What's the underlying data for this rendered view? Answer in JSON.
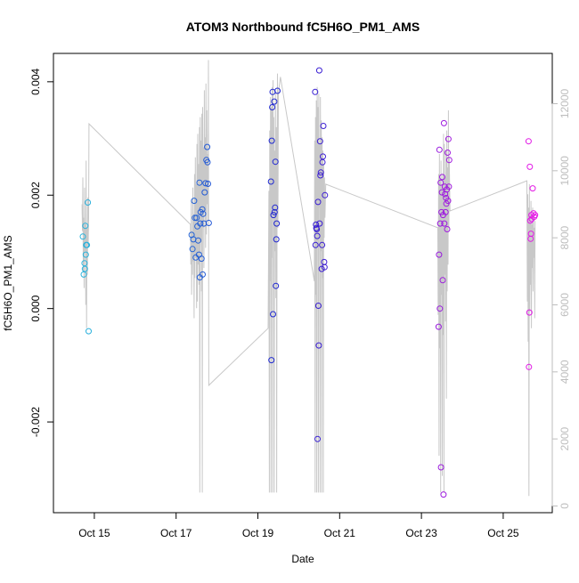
{
  "chart_data": {
    "type": "scatter",
    "title": "ATOM3 Northbound fC5H6O_PM1_AMS",
    "xlabel": "Date",
    "ylabel": "fC5H6O_PM1_AMS",
    "x_unit": "day of October",
    "xlim": [
      14.0,
      26.2
    ],
    "ylim": [
      -0.0036,
      0.0045
    ],
    "x_ticks": [
      15,
      17,
      19,
      21,
      23,
      25
    ],
    "x_tick_labels": [
      "Oct 15",
      "Oct 17",
      "Oct 19",
      "Oct 21",
      "Oct 23",
      "Oct 25"
    ],
    "y_ticks": [
      -0.002,
      0.0,
      0.002,
      0.004
    ],
    "y_tick_labels": [
      "-0.002",
      "0.000",
      "0.002",
      "0.004"
    ],
    "y2_ticks": [
      0,
      2000,
      4000,
      6000,
      8000,
      10000,
      12000
    ],
    "y2_tick_labels": [
      "0",
      "2000",
      "4000",
      "6000",
      "8000",
      "10000",
      "12000"
    ],
    "points": [
      {
        "x": 14.72,
        "y": 0.00127
      },
      {
        "x": 14.74,
        "y": 0.0006
      },
      {
        "x": 14.76,
        "y": 0.0008
      },
      {
        "x": 14.77,
        "y": 0.0007
      },
      {
        "x": 14.78,
        "y": 0.00146
      },
      {
        "x": 14.79,
        "y": 0.00095
      },
      {
        "x": 14.8,
        "y": 0.00112
      },
      {
        "x": 14.82,
        "y": 0.00112
      },
      {
        "x": 14.84,
        "y": 0.00187
      },
      {
        "x": 14.86,
        "y": -0.0004
      },
      {
        "x": 17.38,
        "y": 0.0013
      },
      {
        "x": 17.4,
        "y": 0.00105
      },
      {
        "x": 17.42,
        "y": 0.00122
      },
      {
        "x": 17.44,
        "y": 0.0019
      },
      {
        "x": 17.46,
        "y": 0.0016
      },
      {
        "x": 17.48,
        "y": 0.0009
      },
      {
        "x": 17.5,
        "y": 0.0016
      },
      {
        "x": 17.52,
        "y": 0.00145
      },
      {
        "x": 17.54,
        "y": 0.0012
      },
      {
        "x": 17.56,
        "y": 0.00095
      },
      {
        "x": 17.57,
        "y": 0.00222
      },
      {
        "x": 17.58,
        "y": 0.00055
      },
      {
        "x": 17.59,
        "y": 0.0015
      },
      {
        "x": 17.6,
        "y": 0.0017
      },
      {
        "x": 17.62,
        "y": 0.00088
      },
      {
        "x": 17.64,
        "y": 0.00175
      },
      {
        "x": 17.65,
        "y": 0.0006
      },
      {
        "x": 17.66,
        "y": 0.00167
      },
      {
        "x": 17.68,
        "y": 0.0015
      },
      {
        "x": 17.7,
        "y": 0.00205
      },
      {
        "x": 17.72,
        "y": 0.00221
      },
      {
        "x": 17.74,
        "y": 0.00262
      },
      {
        "x": 17.76,
        "y": 0.00285
      },
      {
        "x": 17.77,
        "y": 0.00258
      },
      {
        "x": 17.78,
        "y": 0.0022
      },
      {
        "x": 17.8,
        "y": 0.00151
      },
      {
        "x": 19.32,
        "y": 0.00224
      },
      {
        "x": 19.33,
        "y": -0.00091
      },
      {
        "x": 19.34,
        "y": 0.00296
      },
      {
        "x": 19.35,
        "y": 0.00355
      },
      {
        "x": 19.36,
        "y": 0.00382
      },
      {
        "x": 19.37,
        "y": -0.0001
      },
      {
        "x": 19.38,
        "y": 0.00165
      },
      {
        "x": 19.4,
        "y": 0.00365
      },
      {
        "x": 19.41,
        "y": 0.0017
      },
      {
        "x": 19.42,
        "y": 0.00178
      },
      {
        "x": 19.43,
        "y": 0.00259
      },
      {
        "x": 19.44,
        "y": 0.0004
      },
      {
        "x": 19.45,
        "y": 0.00122
      },
      {
        "x": 19.46,
        "y": 0.0015
      },
      {
        "x": 19.48,
        "y": 0.00384
      },
      {
        "x": 20.4,
        "y": 0.00382
      },
      {
        "x": 20.41,
        "y": 0.00112
      },
      {
        "x": 20.42,
        "y": 0.00148
      },
      {
        "x": 20.43,
        "y": 0.00142
      },
      {
        "x": 20.44,
        "y": 0.0014
      },
      {
        "x": 20.45,
        "y": 0.00128
      },
      {
        "x": 20.46,
        "y": -0.0023
      },
      {
        "x": 20.47,
        "y": 0.00188
      },
      {
        "x": 20.48,
        "y": 5e-05
      },
      {
        "x": 20.49,
        "y": -0.00065
      },
      {
        "x": 20.5,
        "y": 0.0042
      },
      {
        "x": 20.51,
        "y": 0.0015
      },
      {
        "x": 20.52,
        "y": 0.00295
      },
      {
        "x": 20.53,
        "y": 0.00235
      },
      {
        "x": 20.54,
        "y": 0.0024
      },
      {
        "x": 20.56,
        "y": 0.0007
      },
      {
        "x": 20.57,
        "y": 0.00112
      },
      {
        "x": 20.58,
        "y": 0.00258
      },
      {
        "x": 20.59,
        "y": 0.00268
      },
      {
        "x": 20.6,
        "y": 0.00322
      },
      {
        "x": 20.62,
        "y": 0.00082
      },
      {
        "x": 20.63,
        "y": 0.00073
      },
      {
        "x": 20.64,
        "y": 0.002
      },
      {
        "x": 23.42,
        "y": -0.00032
      },
      {
        "x": 23.43,
        "y": 0.00095
      },
      {
        "x": 23.44,
        "y": 0.0028
      },
      {
        "x": 23.45,
        "y": 0.0
      },
      {
        "x": 23.46,
        "y": 0.0015
      },
      {
        "x": 23.47,
        "y": 0.00222
      },
      {
        "x": 23.48,
        "y": -0.0028
      },
      {
        "x": 23.49,
        "y": 0.0017
      },
      {
        "x": 23.5,
        "y": 0.00205
      },
      {
        "x": 23.51,
        "y": 0.00232
      },
      {
        "x": 23.52,
        "y": 0.0005
      },
      {
        "x": 23.53,
        "y": 0.00165
      },
      {
        "x": 23.54,
        "y": -0.00328
      },
      {
        "x": 23.55,
        "y": 0.00327
      },
      {
        "x": 23.56,
        "y": 0.0015
      },
      {
        "x": 23.57,
        "y": 0.00215
      },
      {
        "x": 23.58,
        "y": 0.00202
      },
      {
        "x": 23.59,
        "y": 0.0017
      },
      {
        "x": 23.6,
        "y": 0.00195
      },
      {
        "x": 23.61,
        "y": 0.00185
      },
      {
        "x": 23.62,
        "y": 0.0021
      },
      {
        "x": 23.63,
        "y": 0.0014
      },
      {
        "x": 23.64,
        "y": 0.00275
      },
      {
        "x": 23.65,
        "y": 0.0019
      },
      {
        "x": 23.66,
        "y": 0.00299
      },
      {
        "x": 23.67,
        "y": 0.00215
      },
      {
        "x": 23.68,
        "y": 0.00262
      },
      {
        "x": 25.62,
        "y": 0.00295
      },
      {
        "x": 25.63,
        "y": -0.00103
      },
      {
        "x": 25.64,
        "y": -7e-05
      },
      {
        "x": 25.65,
        "y": 0.0025
      },
      {
        "x": 25.66,
        "y": 0.00155
      },
      {
        "x": 25.67,
        "y": 0.00123
      },
      {
        "x": 25.68,
        "y": 0.00132
      },
      {
        "x": 25.69,
        "y": 0.00165
      },
      {
        "x": 25.7,
        "y": 0.00158
      },
      {
        "x": 25.72,
        "y": 0.00212
      },
      {
        "x": 25.74,
        "y": 0.00168
      },
      {
        "x": 25.76,
        "y": 0.00162
      },
      {
        "x": 25.78,
        "y": 0.00165
      }
    ],
    "secondary_series": {
      "name": "grey trace (right axis)",
      "y2lim": [
        -200,
        13500
      ],
      "points": [
        {
          "x": 14.7,
          "y": 9000
        },
        {
          "x": 14.71,
          "y": 8200
        },
        {
          "x": 14.72,
          "y": 9800
        },
        {
          "x": 14.73,
          "y": 7000
        },
        {
          "x": 14.74,
          "y": 8600
        },
        {
          "x": 14.75,
          "y": 6500
        },
        {
          "x": 14.76,
          "y": 9500
        },
        {
          "x": 14.77,
          "y": 7600
        },
        {
          "x": 14.78,
          "y": 8400
        },
        {
          "x": 14.79,
          "y": 6000
        },
        {
          "x": 14.8,
          "y": 10300
        },
        {
          "x": 14.81,
          "y": 5300
        },
        {
          "x": 14.82,
          "y": 8300
        },
        {
          "x": 14.83,
          "y": 6900
        },
        {
          "x": 14.84,
          "y": 9200
        },
        {
          "x": 14.85,
          "y": 7800
        },
        {
          "x": 14.86,
          "y": 8600
        },
        {
          "x": 14.87,
          "y": 11400
        },
        {
          "x": 17.35,
          "y": 8400
        },
        {
          "x": 17.36,
          "y": 7200
        },
        {
          "x": 17.37,
          "y": 9100
        },
        {
          "x": 17.38,
          "y": 6300
        },
        {
          "x": 17.39,
          "y": 8200
        },
        {
          "x": 17.4,
          "y": 6900
        },
        {
          "x": 17.41,
          "y": 9500
        },
        {
          "x": 17.42,
          "y": 7300
        },
        {
          "x": 17.43,
          "y": 8700
        },
        {
          "x": 17.44,
          "y": 5600
        },
        {
          "x": 17.45,
          "y": 9900
        },
        {
          "x": 17.46,
          "y": 6800
        },
        {
          "x": 17.47,
          "y": 10400
        },
        {
          "x": 17.48,
          "y": 7400
        },
        {
          "x": 17.49,
          "y": 9600
        },
        {
          "x": 17.5,
          "y": 5900
        },
        {
          "x": 17.51,
          "y": 10800
        },
        {
          "x": 17.52,
          "y": 6100
        },
        {
          "x": 17.53,
          "y": 11100
        },
        {
          "x": 17.54,
          "y": 7200
        },
        {
          "x": 17.55,
          "y": 10200
        },
        {
          "x": 17.56,
          "y": 6600
        },
        {
          "x": 17.57,
          "y": 11300
        },
        {
          "x": 17.58,
          "y": 400
        },
        {
          "x": 17.59,
          "y": 11600
        },
        {
          "x": 17.6,
          "y": 7900
        },
        {
          "x": 17.61,
          "y": 10900
        },
        {
          "x": 17.62,
          "y": 6400
        },
        {
          "x": 17.63,
          "y": 11700
        },
        {
          "x": 17.64,
          "y": 400
        },
        {
          "x": 17.65,
          "y": 11900
        },
        {
          "x": 17.66,
          "y": 8300
        },
        {
          "x": 17.67,
          "y": 10700
        },
        {
          "x": 17.68,
          "y": 7100
        },
        {
          "x": 17.69,
          "y": 12400
        },
        {
          "x": 17.7,
          "y": 8800
        },
        {
          "x": 17.71,
          "y": 11000
        },
        {
          "x": 17.72,
          "y": 7700
        },
        {
          "x": 17.73,
          "y": 12600
        },
        {
          "x": 17.74,
          "y": 8100
        },
        {
          "x": 17.75,
          "y": 11800
        },
        {
          "x": 17.76,
          "y": 9000
        },
        {
          "x": 17.77,
          "y": 10500
        },
        {
          "x": 17.78,
          "y": 8500
        },
        {
          "x": 17.79,
          "y": 13300
        },
        {
          "x": 17.8,
          "y": 3600
        },
        {
          "x": 19.25,
          "y": 5300
        },
        {
          "x": 19.27,
          "y": 9400
        },
        {
          "x": 19.28,
          "y": 400
        },
        {
          "x": 19.29,
          "y": 11200
        },
        {
          "x": 19.3,
          "y": 6700
        },
        {
          "x": 19.31,
          "y": 12200
        },
        {
          "x": 19.32,
          "y": 400
        },
        {
          "x": 19.33,
          "y": 11900
        },
        {
          "x": 19.34,
          "y": 7400
        },
        {
          "x": 19.35,
          "y": 12500
        },
        {
          "x": 19.36,
          "y": 400
        },
        {
          "x": 19.37,
          "y": 12700
        },
        {
          "x": 19.38,
          "y": 8900
        },
        {
          "x": 19.39,
          "y": 11600
        },
        {
          "x": 19.4,
          "y": 400
        },
        {
          "x": 19.41,
          "y": 10600
        },
        {
          "x": 19.42,
          "y": 7600
        },
        {
          "x": 19.43,
          "y": 12400
        },
        {
          "x": 19.44,
          "y": 6200
        },
        {
          "x": 19.45,
          "y": 11300
        },
        {
          "x": 19.46,
          "y": 400
        },
        {
          "x": 19.47,
          "y": 10100
        },
        {
          "x": 19.48,
          "y": 12900
        },
        {
          "x": 19.49,
          "y": 8300
        },
        {
          "x": 19.5,
          "y": 12300
        },
        {
          "x": 19.55,
          "y": 12800
        },
        {
          "x": 20.38,
          "y": 6700
        },
        {
          "x": 20.39,
          "y": 10900
        },
        {
          "x": 20.4,
          "y": 400
        },
        {
          "x": 20.41,
          "y": 11600
        },
        {
          "x": 20.42,
          "y": 6300
        },
        {
          "x": 20.43,
          "y": 12100
        },
        {
          "x": 20.44,
          "y": 400
        },
        {
          "x": 20.45,
          "y": 12500
        },
        {
          "x": 20.46,
          "y": 7900
        },
        {
          "x": 20.47,
          "y": 11900
        },
        {
          "x": 20.48,
          "y": 400
        },
        {
          "x": 20.49,
          "y": 12300
        },
        {
          "x": 20.5,
          "y": 8900
        },
        {
          "x": 20.51,
          "y": 10800
        },
        {
          "x": 20.52,
          "y": 400
        },
        {
          "x": 20.53,
          "y": 12200
        },
        {
          "x": 20.54,
          "y": 7600
        },
        {
          "x": 20.55,
          "y": 11500
        },
        {
          "x": 20.56,
          "y": 400
        },
        {
          "x": 20.57,
          "y": 11000
        },
        {
          "x": 20.58,
          "y": 6800
        },
        {
          "x": 20.59,
          "y": 10600
        },
        {
          "x": 20.6,
          "y": 400
        },
        {
          "x": 20.61,
          "y": 10200
        },
        {
          "x": 20.62,
          "y": 8000
        },
        {
          "x": 20.63,
          "y": 9800
        },
        {
          "x": 20.64,
          "y": 8600
        },
        {
          "x": 20.66,
          "y": 9600
        },
        {
          "x": 23.4,
          "y": 8300
        },
        {
          "x": 23.41,
          "y": 5700
        },
        {
          "x": 23.42,
          "y": 9900
        },
        {
          "x": 23.43,
          "y": 1500
        },
        {
          "x": 23.44,
          "y": 10500
        },
        {
          "x": 23.45,
          "y": 4700
        },
        {
          "x": 23.46,
          "y": 9700
        },
        {
          "x": 23.47,
          "y": 400
        },
        {
          "x": 23.48,
          "y": 10300
        },
        {
          "x": 23.49,
          "y": 6300
        },
        {
          "x": 23.5,
          "y": 9500
        },
        {
          "x": 23.51,
          "y": 900
        },
        {
          "x": 23.52,
          "y": 9900
        },
        {
          "x": 23.53,
          "y": 5100
        },
        {
          "x": 23.54,
          "y": 11100
        },
        {
          "x": 23.55,
          "y": 400
        },
        {
          "x": 23.56,
          "y": 10800
        },
        {
          "x": 23.57,
          "y": 6900
        },
        {
          "x": 23.58,
          "y": 9800
        },
        {
          "x": 23.59,
          "y": 5500
        },
        {
          "x": 23.6,
          "y": 10600
        },
        {
          "x": 23.61,
          "y": 3200
        },
        {
          "x": 23.62,
          "y": 11200
        },
        {
          "x": 23.63,
          "y": 6400
        },
        {
          "x": 23.64,
          "y": 10100
        },
        {
          "x": 23.65,
          "y": 7200
        },
        {
          "x": 23.66,
          "y": 11800
        },
        {
          "x": 23.67,
          "y": 8300
        },
        {
          "x": 23.68,
          "y": 10400
        },
        {
          "x": 23.7,
          "y": 8800
        },
        {
          "x": 25.58,
          "y": 9700
        },
        {
          "x": 25.59,
          "y": 6100
        },
        {
          "x": 25.6,
          "y": 9300
        },
        {
          "x": 25.61,
          "y": 4900
        },
        {
          "x": 25.62,
          "y": 8900
        },
        {
          "x": 25.63,
          "y": 300
        },
        {
          "x": 25.64,
          "y": 9600
        },
        {
          "x": 25.65,
          "y": 5800
        },
        {
          "x": 25.66,
          "y": 8700
        },
        {
          "x": 25.67,
          "y": 6600
        },
        {
          "x": 25.68,
          "y": 9100
        },
        {
          "x": 25.69,
          "y": 5300
        },
        {
          "x": 25.7,
          "y": 8400
        },
        {
          "x": 25.71,
          "y": 7100
        },
        {
          "x": 25.72,
          "y": 8900
        },
        {
          "x": 25.73,
          "y": 6400
        },
        {
          "x": 25.74,
          "y": 8600
        },
        {
          "x": 25.75,
          "y": 7400
        },
        {
          "x": 25.76,
          "y": 8300
        },
        {
          "x": 25.77,
          "y": 5600
        },
        {
          "x": 25.78,
          "y": 8500
        }
      ]
    },
    "colors": {
      "point_start": "#2ab4dc",
      "point_mid": "#1f1fd0",
      "point_end": "#e619e6",
      "trace": "#c8c8c8",
      "right_axis": "#bdbdbd",
      "axis": "#000000"
    }
  }
}
